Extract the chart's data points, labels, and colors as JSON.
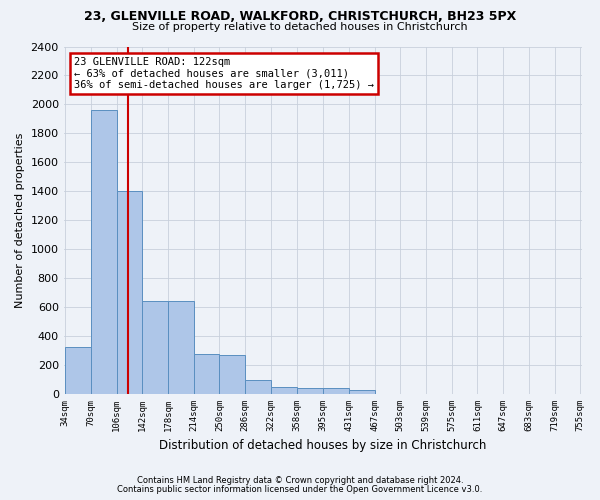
{
  "title1": "23, GLENVILLE ROAD, WALKFORD, CHRISTCHURCH, BH23 5PX",
  "title2": "Size of property relative to detached houses in Christchurch",
  "xlabel": "Distribution of detached houses by size in Christchurch",
  "ylabel": "Number of detached properties",
  "bar_edges": [
    34,
    70,
    106,
    142,
    178,
    214,
    250,
    286,
    322,
    358,
    395,
    431,
    467,
    503,
    539,
    575,
    611,
    647,
    683,
    719,
    755
  ],
  "bar_heights": [
    325,
    1960,
    1400,
    640,
    640,
    275,
    270,
    100,
    50,
    45,
    40,
    25,
    0,
    0,
    0,
    0,
    0,
    0,
    0,
    0
  ],
  "bar_color": "#aec6e8",
  "bar_edgecolor": "#5a8fc0",
  "property_line_x": 122,
  "annotation_line1": "23 GLENVILLE ROAD: 122sqm",
  "annotation_line2": "← 63% of detached houses are smaller (3,011)",
  "annotation_line3": "36% of semi-detached houses are larger (1,725) →",
  "annotation_box_color": "#ffffff",
  "annotation_box_edgecolor": "#cc0000",
  "vline_color": "#cc0000",
  "ylim": [
    0,
    2400
  ],
  "yticks": [
    0,
    200,
    400,
    600,
    800,
    1000,
    1200,
    1400,
    1600,
    1800,
    2000,
    2200,
    2400
  ],
  "grid_color": "#c8d0dc",
  "bg_color": "#eef2f8",
  "footnote1": "Contains HM Land Registry data © Crown copyright and database right 2024.",
  "footnote2": "Contains public sector information licensed under the Open Government Licence v3.0."
}
